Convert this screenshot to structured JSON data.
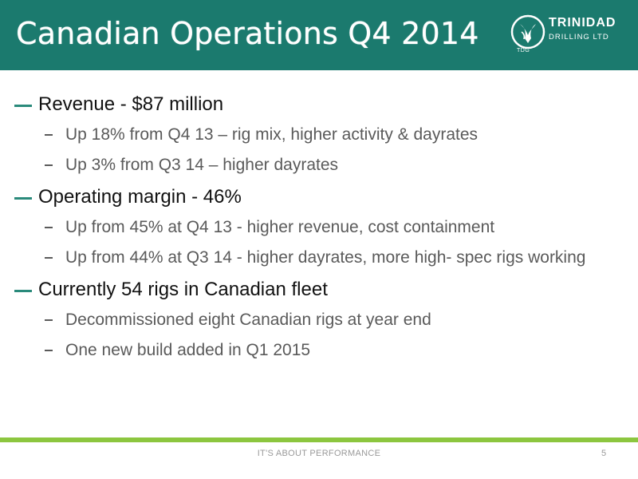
{
  "slide": {
    "title": "Canadian Operations Q4 2014",
    "page_number": "5"
  },
  "logo": {
    "line1": "TRINIDAD",
    "line2": "DRILLING LTD",
    "mark_text": "TDG"
  },
  "bullets": [
    {
      "text": "Revenue - $87 million",
      "subs": [
        "Up 18% from Q4 13 – rig mix, higher activity & dayrates",
        "Up 3% from Q3 14 – higher dayrates"
      ]
    },
    {
      "text": "Operating margin - 46%",
      "subs": [
        "Up from 45% at Q4 13 - higher revenue, cost containment",
        "Up from 44% at Q3 14 - higher dayrates, more high- spec rigs working"
      ]
    },
    {
      "text": "Currently 54 rigs in Canadian fleet",
      "subs": [
        "Decommissioned eight Canadian rigs at year end",
        "One new build added in Q1 2015"
      ]
    }
  ],
  "footer": {
    "tagline": "IT'S ABOUT PERFORMANCE"
  },
  "colors": {
    "header": "#1b7a6e",
    "accent": "#2a8a7b",
    "footer_bar": "#8cc63f"
  }
}
